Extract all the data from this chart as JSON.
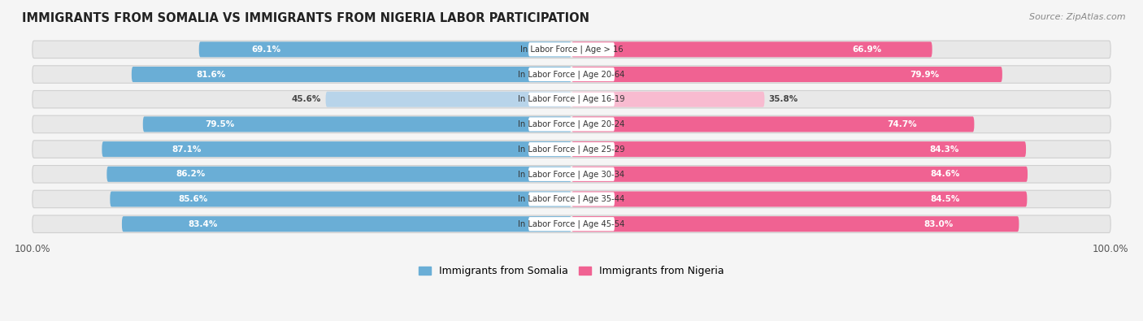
{
  "title": "IMMIGRANTS FROM SOMALIA VS IMMIGRANTS FROM NIGERIA LABOR PARTICIPATION",
  "source": "Source: ZipAtlas.com",
  "categories": [
    "In Labor Force | Age > 16",
    "In Labor Force | Age 20-64",
    "In Labor Force | Age 16-19",
    "In Labor Force | Age 20-24",
    "In Labor Force | Age 25-29",
    "In Labor Force | Age 30-34",
    "In Labor Force | Age 35-44",
    "In Labor Force | Age 45-54"
  ],
  "somalia_values": [
    69.1,
    81.6,
    45.6,
    79.5,
    87.1,
    86.2,
    85.6,
    83.4
  ],
  "nigeria_values": [
    66.9,
    79.9,
    35.8,
    74.7,
    84.3,
    84.6,
    84.5,
    83.0
  ],
  "somalia_color": "#6aaed6",
  "somalia_color_light": "#b8d4ea",
  "nigeria_color": "#f06292",
  "nigeria_color_light": "#f8bbd0",
  "row_bg_color": "#e8e8e8",
  "row_border_color": "#d0d0d0",
  "bg_color": "#f5f5f5",
  "max_val": 100.0,
  "legend_somalia": "Immigrants from Somalia",
  "legend_nigeria": "Immigrants from Nigeria",
  "figsize": [
    14.06,
    3.95
  ],
  "dpi": 100
}
